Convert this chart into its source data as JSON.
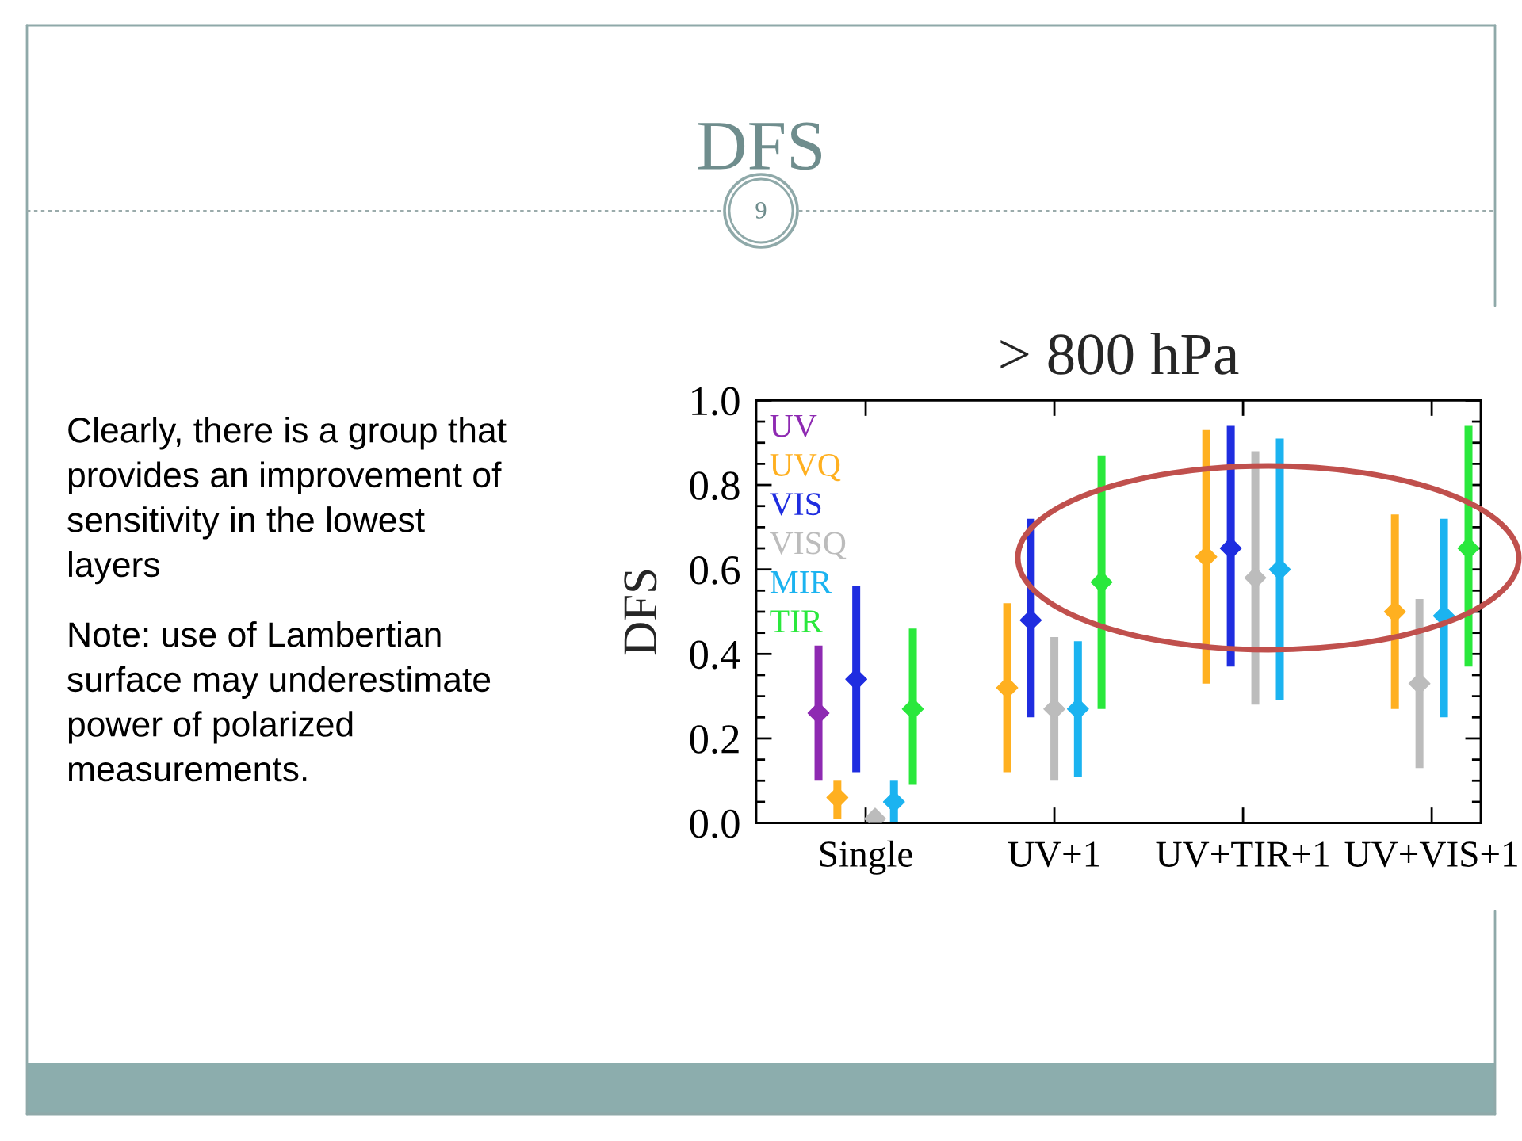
{
  "chart_data": {
    "type": "scatter",
    "title": "> 800 hPa",
    "ylabel": "DFS",
    "categories": [
      "Single",
      "UV+1",
      "UV+TIR+1",
      "UV+VIS+1"
    ],
    "series": [
      {
        "name": "UV",
        "color": "#8e2ab2",
        "values": [
          0.26,
          null,
          null,
          null
        ],
        "errors": [
          [
            0.1,
            0.42
          ],
          null,
          null,
          null
        ]
      },
      {
        "name": "UVQ",
        "color": "#ffb020",
        "values": [
          0.06,
          0.32,
          0.63,
          0.5
        ],
        "errors": [
          [
            0.01,
            0.1
          ],
          [
            0.12,
            0.52
          ],
          [
            0.33,
            0.93
          ],
          [
            0.27,
            0.73
          ]
        ]
      },
      {
        "name": "VIS",
        "color": "#1f2de0",
        "values": [
          0.34,
          0.48,
          0.65,
          null
        ],
        "errors": [
          [
            0.12,
            0.56
          ],
          [
            0.25,
            0.72
          ],
          [
            0.37,
            0.94
          ],
          null
        ]
      },
      {
        "name": "VISQ",
        "color": "#bcbcbc",
        "values": [
          0.01,
          0.27,
          0.58,
          0.33
        ],
        "errors": [
          [
            0.0,
            0.02
          ],
          [
            0.1,
            0.44
          ],
          [
            0.28,
            0.88
          ],
          [
            0.13,
            0.53
          ]
        ]
      },
      {
        "name": "MIR",
        "color": "#1bb3f0",
        "values": [
          0.05,
          0.27,
          0.6,
          0.49
        ],
        "errors": [
          [
            0.0,
            0.1
          ],
          [
            0.11,
            0.43
          ],
          [
            0.29,
            0.91
          ],
          [
            0.25,
            0.72
          ]
        ]
      },
      {
        "name": "TIR",
        "color": "#2ae83c",
        "values": [
          0.27,
          0.57,
          null,
          0.65
        ],
        "errors": [
          [
            0.09,
            0.46
          ],
          [
            0.27,
            0.87
          ],
          null,
          [
            0.37,
            0.94
          ]
        ]
      }
    ],
    "ylim": [
      0,
      1
    ],
    "yticks": [
      {
        "value": 0,
        "label": "0.0"
      },
      0.2,
      0.4,
      0.6,
      0.8,
      {
        "value": 1,
        "label": "1.0"
      }
    ],
    "marker": "diamond",
    "legend": "top left",
    "annotations": [
      "DFS",
      "9",
      "Clearly, there is a group that provides an improvement of sensitivity in the lowest layers",
      "Note: use of Lambertian surface may underestimate power of polarized measurements."
    ]
  }
}
